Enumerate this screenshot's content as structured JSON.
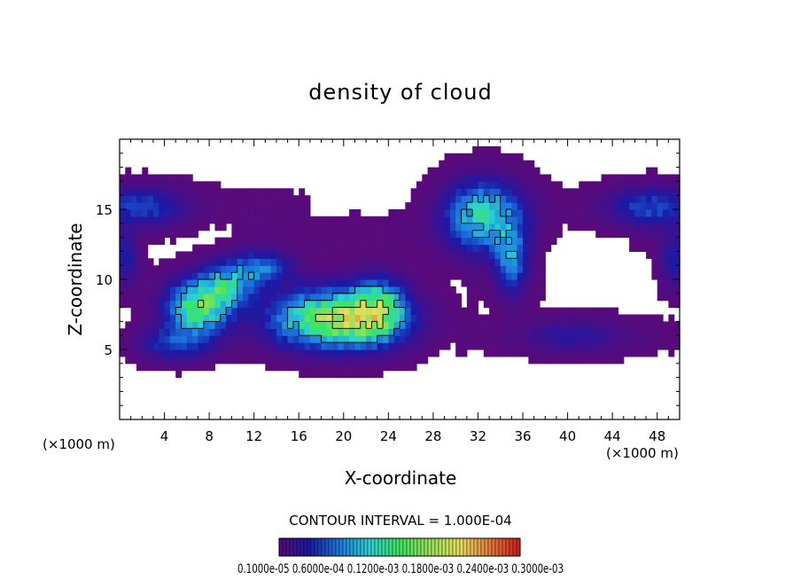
{
  "chart_data": {
    "type": "heatmap",
    "title": "density of cloud",
    "xlabel": "X-coordinate",
    "ylabel": "Z-coordinate",
    "x_unit_left": "(×1000 m)",
    "x_unit_right": "(×1000 m)",
    "xlim": [
      0,
      50
    ],
    "ylim": [
      0,
      20
    ],
    "x_ticks": [
      "4",
      "8",
      "12",
      "16",
      "20",
      "24",
      "28",
      "32",
      "36",
      "40",
      "44",
      "48"
    ],
    "x_tick_values": [
      4,
      8,
      12,
      16,
      20,
      24,
      28,
      32,
      36,
      40,
      44,
      48
    ],
    "y_ticks": [
      "5",
      "10",
      "15"
    ],
    "y_tick_values": [
      5,
      10,
      15
    ],
    "contour_interval_text": "CONTOUR INTERVAL = 1.000E-04",
    "colorbar_labels_text": "0.1000e-05  0.6000e-04  0.1200e-03  0.1800e-03  0.2400e-03  0.3000e-03",
    "colorbar_min": 1e-06,
    "colorbar_max": 0.00033,
    "colormap": [
      "#5a0a7a",
      "#1a1aa8",
      "#1a7ae0",
      "#2cd2d2",
      "#3ce65a",
      "#9ae05a",
      "#e6e05a",
      "#e67a3c",
      "#d21a1a"
    ],
    "cloud_blobs": [
      {
        "x": 2.0,
        "z": 15.2,
        "sx": 2.5,
        "sz": 0.9,
        "peak": 6e-05
      },
      {
        "x": 47.5,
        "z": 15.2,
        "sx": 2.5,
        "sz": 0.9,
        "peak": 6e-05
      },
      {
        "x": 0.5,
        "z": 11.5,
        "sx": 0.8,
        "sz": 1.2,
        "peak": 4e-05
      },
      {
        "x": 49.5,
        "z": 11.5,
        "sx": 0.8,
        "sz": 1.2,
        "peak": 4e-05
      },
      {
        "x": 7.0,
        "z": 8.0,
        "sx": 1.8,
        "sz": 1.2,
        "peak": 0.00016
      },
      {
        "x": 9.5,
        "z": 9.5,
        "sx": 1.6,
        "sz": 1.0,
        "peak": 0.00011
      },
      {
        "x": 12.5,
        "z": 10.8,
        "sx": 1.8,
        "sz": 0.8,
        "peak": 8e-05
      },
      {
        "x": 5.0,
        "z": 5.5,
        "sx": 2.0,
        "sz": 0.8,
        "peak": 6e-05
      },
      {
        "x": 19.5,
        "z": 7.2,
        "sx": 3.6,
        "sz": 1.3,
        "peak": 0.00021
      },
      {
        "x": 23.0,
        "z": 8.0,
        "sx": 1.6,
        "sz": 1.3,
        "peak": 0.00012
      },
      {
        "x": 32.5,
        "z": 14.5,
        "sx": 2.2,
        "sz": 1.6,
        "peak": 0.00013
      },
      {
        "x": 35.0,
        "z": 11.5,
        "sx": 0.9,
        "sz": 1.6,
        "peak": 9e-05
      },
      {
        "x": 40.5,
        "z": 6.0,
        "sx": 3.0,
        "sz": 0.8,
        "peak": 3e-05
      }
    ],
    "cloud_layers": [
      {
        "z": 15.2,
        "sz": 1.1,
        "level": 2.5e-06,
        "x_gaps": [
          [
            17,
            30
          ]
        ]
      },
      {
        "z": 13.2,
        "sz": 1.2,
        "level": 2.5e-06,
        "x_gaps": [
          [
            1.5,
            10
          ],
          [
            37.5,
            45.5
          ]
        ]
      },
      {
        "z": 9.8,
        "sz": 1.0,
        "level": 2.5e-06,
        "x_gaps": [
          [
            26,
            31
          ],
          [
            38,
            48
          ]
        ]
      },
      {
        "z": 6.0,
        "sz": 0.9,
        "level": 2.5e-06,
        "x_gaps": [
          [
            0,
            1.5
          ],
          [
            27,
            30
          ]
        ]
      }
    ]
  }
}
